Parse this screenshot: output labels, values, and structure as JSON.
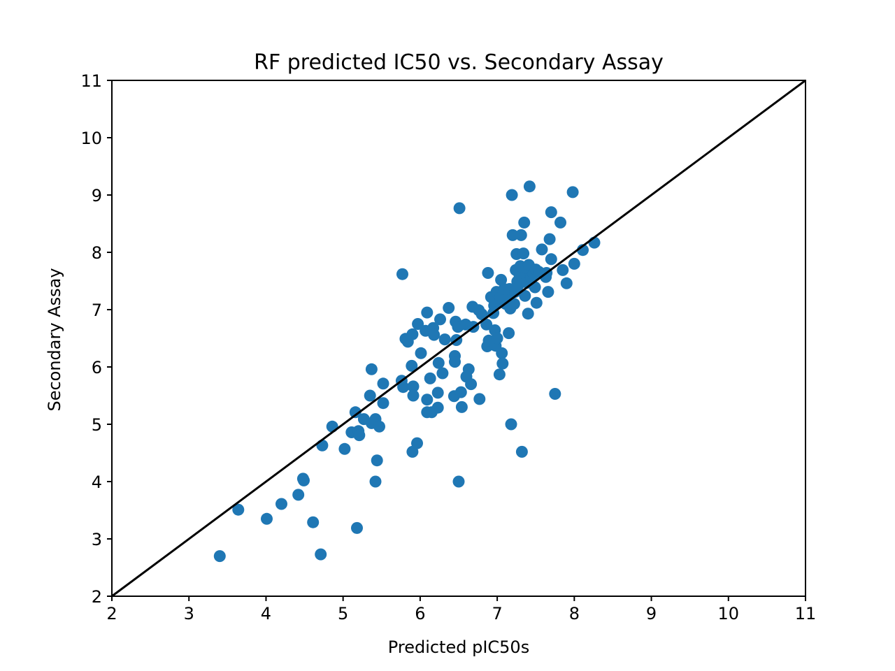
{
  "chart_data": {
    "type": "scatter",
    "title": "RF predicted IC50 vs. Secondary Assay",
    "xlabel": "Predicted pIC50s",
    "ylabel": "Secondary Assay",
    "xlim": [
      2,
      11
    ],
    "ylim": [
      2,
      11
    ],
    "xticks": [
      "2",
      "3",
      "4",
      "5",
      "6",
      "7",
      "8",
      "9",
      "10",
      "11"
    ],
    "yticks": [
      "2",
      "3",
      "4",
      "5",
      "6",
      "7",
      "8",
      "9",
      "10",
      "11"
    ],
    "grid": false,
    "reference_line": {
      "from": [
        2,
        2
      ],
      "to": [
        11,
        11
      ],
      "color": "#000000"
    },
    "marker_color": "#1f77b4",
    "series": [
      {
        "points": [
          [
            3.4,
            2.7
          ],
          [
            3.64,
            3.51
          ],
          [
            4.01,
            3.35
          ],
          [
            4.2,
            3.61
          ],
          [
            4.42,
            3.77
          ],
          [
            4.48,
            4.05
          ],
          [
            4.49,
            4.02
          ],
          [
            4.61,
            3.29
          ],
          [
            4.71,
            2.73
          ],
          [
            4.73,
            4.63
          ],
          [
            4.86,
            4.96
          ],
          [
            5.02,
            4.57
          ],
          [
            5.11,
            4.86
          ],
          [
            5.16,
            5.21
          ],
          [
            5.18,
            3.19
          ],
          [
            5.2,
            4.88
          ],
          [
            5.21,
            4.81
          ],
          [
            5.27,
            5.09
          ],
          [
            5.35,
            5.5
          ],
          [
            5.37,
            5.96
          ],
          [
            5.37,
            5.02
          ],
          [
            5.42,
            5.09
          ],
          [
            5.42,
            4.0
          ],
          [
            5.44,
            4.37
          ],
          [
            5.47,
            4.96
          ],
          [
            5.52,
            5.71
          ],
          [
            5.52,
            5.37
          ],
          [
            5.77,
            7.62
          ],
          [
            5.76,
            5.76
          ],
          [
            5.78,
            5.65
          ],
          [
            5.81,
            6.49
          ],
          [
            5.84,
            6.44
          ],
          [
            5.89,
            6.02
          ],
          [
            5.9,
            6.57
          ],
          [
            5.9,
            4.52
          ],
          [
            5.91,
            5.66
          ],
          [
            5.91,
            5.5
          ],
          [
            5.96,
            4.67
          ],
          [
            5.97,
            6.75
          ],
          [
            6.01,
            6.24
          ],
          [
            6.07,
            6.63
          ],
          [
            6.09,
            6.95
          ],
          [
            6.09,
            5.43
          ],
          [
            6.09,
            5.21
          ],
          [
            6.13,
            5.8
          ],
          [
            6.15,
            5.21
          ],
          [
            6.17,
            6.68
          ],
          [
            6.18,
            6.56
          ],
          [
            6.23,
            5.55
          ],
          [
            6.23,
            5.29
          ],
          [
            6.24,
            6.07
          ],
          [
            6.26,
            6.83
          ],
          [
            6.29,
            5.89
          ],
          [
            6.32,
            6.48
          ],
          [
            6.37,
            7.03
          ],
          [
            6.44,
            5.49
          ],
          [
            6.45,
            6.19
          ],
          [
            6.45,
            6.09
          ],
          [
            6.46,
            6.79
          ],
          [
            6.47,
            6.47
          ],
          [
            6.49,
            6.7
          ],
          [
            6.5,
            4.0
          ],
          [
            6.51,
            8.77
          ],
          [
            6.53,
            5.56
          ],
          [
            6.54,
            5.3
          ],
          [
            6.59,
            6.74
          ],
          [
            6.6,
            5.83
          ],
          [
            6.63,
            5.96
          ],
          [
            6.66,
            5.7
          ],
          [
            6.68,
            7.05
          ],
          [
            6.69,
            6.7
          ],
          [
            6.76,
            6.99
          ],
          [
            6.77,
            5.44
          ],
          [
            6.8,
            6.92
          ],
          [
            6.86,
            6.74
          ],
          [
            6.87,
            6.36
          ],
          [
            6.88,
            7.64
          ],
          [
            6.89,
            6.46
          ],
          [
            6.92,
            7.22
          ],
          [
            6.95,
            6.94
          ],
          [
            6.96,
            7.07
          ],
          [
            6.97,
            6.64
          ],
          [
            6.98,
            6.37
          ],
          [
            6.99,
            7.31
          ],
          [
            7.0,
            6.5
          ],
          [
            7.01,
            7.15
          ],
          [
            7.03,
            5.87
          ],
          [
            7.04,
            7.21
          ],
          [
            7.05,
            7.52
          ],
          [
            7.06,
            6.24
          ],
          [
            7.07,
            6.06
          ],
          [
            7.09,
            7.36
          ],
          [
            7.11,
            7.1
          ],
          [
            7.13,
            7.18
          ],
          [
            7.15,
            6.59
          ],
          [
            7.16,
            7.36
          ],
          [
            7.17,
            7.02
          ],
          [
            7.18,
            5.0
          ],
          [
            7.19,
            9.0
          ],
          [
            7.2,
            8.3
          ],
          [
            7.22,
            7.1
          ],
          [
            7.23,
            7.31
          ],
          [
            7.24,
            7.69
          ],
          [
            7.25,
            7.97
          ],
          [
            7.26,
            7.49
          ],
          [
            7.27,
            7.42
          ],
          [
            7.29,
            7.6
          ],
          [
            7.3,
            7.76
          ],
          [
            7.31,
            8.3
          ],
          [
            7.32,
            4.52
          ],
          [
            7.33,
            7.54
          ],
          [
            7.34,
            7.98
          ],
          [
            7.35,
            8.52
          ],
          [
            7.36,
            7.24
          ],
          [
            7.37,
            7.61
          ],
          [
            7.38,
            7.73
          ],
          [
            7.39,
            7.47
          ],
          [
            7.4,
            6.93
          ],
          [
            7.41,
            7.78
          ],
          [
            7.42,
            9.15
          ],
          [
            7.44,
            7.57
          ],
          [
            7.47,
            7.62
          ],
          [
            7.49,
            7.39
          ],
          [
            7.5,
            7.7
          ],
          [
            7.51,
            7.12
          ],
          [
            7.54,
            7.66
          ],
          [
            7.58,
            8.05
          ],
          [
            7.63,
            7.57
          ],
          [
            7.64,
            7.64
          ],
          [
            7.66,
            7.31
          ],
          [
            7.68,
            8.23
          ],
          [
            7.7,
            7.88
          ],
          [
            7.7,
            8.7
          ],
          [
            7.75,
            5.53
          ],
          [
            7.82,
            8.52
          ],
          [
            7.85,
            7.69
          ],
          [
            7.9,
            7.46
          ],
          [
            7.98,
            9.05
          ],
          [
            8.0,
            7.8
          ],
          [
            8.11,
            8.04
          ],
          [
            8.26,
            8.17
          ]
        ]
      }
    ]
  }
}
